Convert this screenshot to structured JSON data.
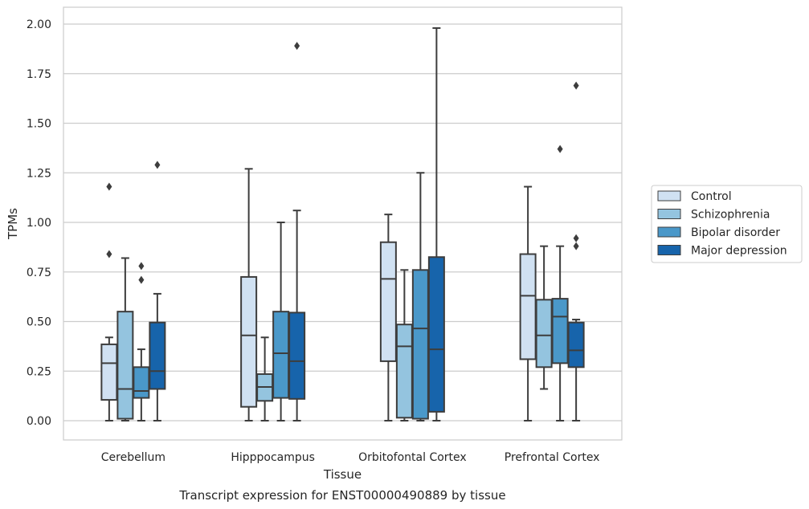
{
  "caption": "Transcript expression for ENST00000490889 by tissue",
  "chart_data": {
    "type": "box",
    "xlabel": "Tissue",
    "ylabel": "TPMs",
    "ylim": [
      -0.1,
      2.08
    ],
    "yticks": [
      "0.00",
      "0.25",
      "0.50",
      "0.75",
      "1.00",
      "1.25",
      "1.50",
      "1.75",
      "2.00"
    ],
    "categories": [
      "Cerebellum",
      "Hipppocampus",
      "Orbitofontal Cortex",
      "Prefrontal Cortex"
    ],
    "grid": "horizontal",
    "legend_position": "right",
    "series": [
      {
        "name": "Control",
        "color": "#d0e1f2",
        "boxes": [
          {
            "whisker_low": 0,
            "q1": 0.105,
            "median": 0.29,
            "q3": 0.385,
            "whisker_high": 0.42,
            "outliers": [
              0.84,
              1.18
            ]
          },
          {
            "whisker_low": 0,
            "q1": 0.07,
            "median": 0.43,
            "q3": 0.725,
            "whisker_high": 1.27,
            "outliers": []
          },
          {
            "whisker_low": 0,
            "q1": 0.3,
            "median": 0.715,
            "q3": 0.9,
            "whisker_high": 1.04,
            "outliers": []
          },
          {
            "whisker_low": 0,
            "q1": 0.31,
            "median": 0.63,
            "q3": 0.84,
            "whisker_high": 1.18,
            "outliers": []
          }
        ]
      },
      {
        "name": "Schizophrenia",
        "color": "#94c4df",
        "boxes": [
          {
            "whisker_low": 0,
            "q1": 0.01,
            "median": 0.16,
            "q3": 0.55,
            "whisker_high": 0.82,
            "outliers": []
          },
          {
            "whisker_low": 0,
            "q1": 0.1,
            "median": 0.17,
            "q3": 0.235,
            "whisker_high": 0.42,
            "outliers": []
          },
          {
            "whisker_low": 0,
            "q1": 0.015,
            "median": 0.375,
            "q3": 0.485,
            "whisker_high": 0.76,
            "outliers": []
          },
          {
            "whisker_low": 0.16,
            "q1": 0.27,
            "median": 0.43,
            "q3": 0.61,
            "whisker_high": 0.88,
            "outliers": []
          }
        ]
      },
      {
        "name": "Bipolar disorder",
        "color": "#4a98c9",
        "boxes": [
          {
            "whisker_low": 0,
            "q1": 0.115,
            "median": 0.15,
            "q3": 0.27,
            "whisker_high": 0.36,
            "outliers": [
              0.71,
              0.78
            ]
          },
          {
            "whisker_low": 0,
            "q1": 0.115,
            "median": 0.34,
            "q3": 0.55,
            "whisker_high": 1.0,
            "outliers": []
          },
          {
            "whisker_low": 0,
            "q1": 0.01,
            "median": 0.465,
            "q3": 0.76,
            "whisker_high": 1.25,
            "outliers": []
          },
          {
            "whisker_low": 0,
            "q1": 0.29,
            "median": 0.525,
            "q3": 0.615,
            "whisker_high": 0.88,
            "outliers": [
              1.37
            ]
          }
        ]
      },
      {
        "name": "Major depression",
        "color": "#1764ab",
        "boxes": [
          {
            "whisker_low": 0,
            "q1": 0.16,
            "median": 0.25,
            "q3": 0.495,
            "whisker_high": 0.64,
            "outliers": [
              1.29
            ]
          },
          {
            "whisker_low": 0,
            "q1": 0.11,
            "median": 0.3,
            "q3": 0.545,
            "whisker_high": 1.06,
            "outliers": [
              1.89
            ]
          },
          {
            "whisker_low": 0,
            "q1": 0.045,
            "median": 0.36,
            "q3": 0.825,
            "whisker_high": 1.98,
            "outliers": []
          },
          {
            "whisker_low": 0,
            "q1": 0.27,
            "median": 0.355,
            "q3": 0.495,
            "whisker_high": 0.51,
            "outliers": [
              0.88,
              0.92,
              1.69
            ]
          }
        ]
      }
    ]
  }
}
